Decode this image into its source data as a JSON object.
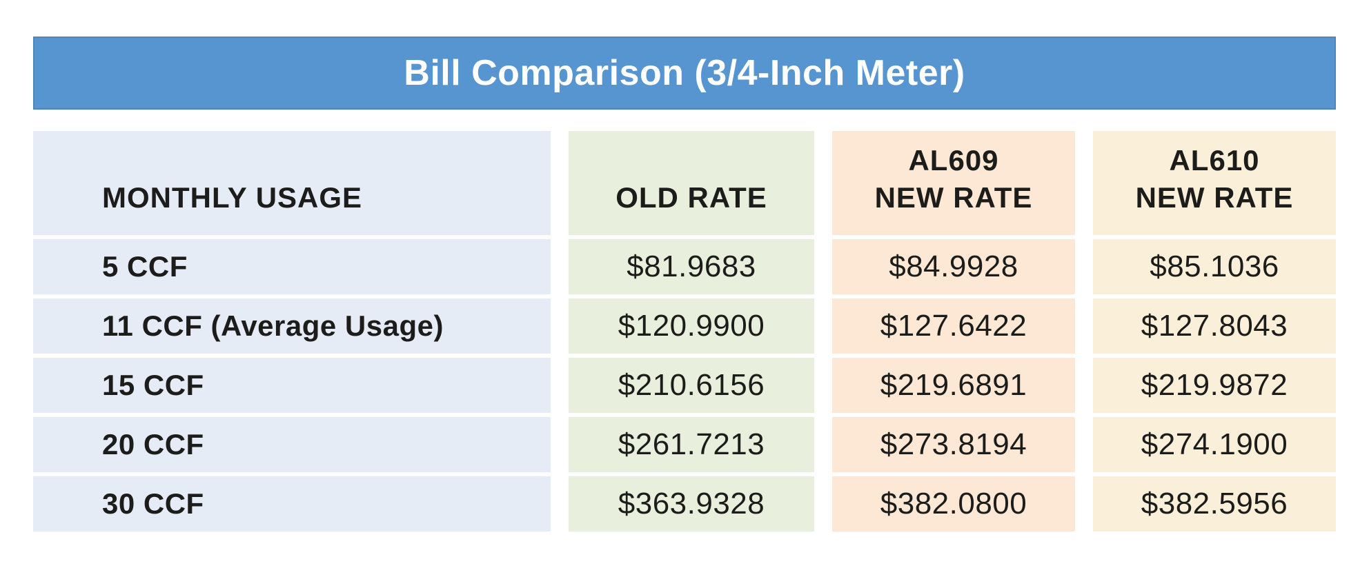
{
  "title": "Bill Comparison (3/4-Inch Meter)",
  "colors": {
    "bar_blue": "#5795d0",
    "bar_blue_border": "#4d86bb",
    "title_text": "#ffffff",
    "col_usage": "#e6ecf6",
    "col_old": "#e8f0dd",
    "col_al609": "#fce8d4",
    "col_al610": "#faf0d9",
    "text": "#1c1c1a"
  },
  "table": {
    "header": {
      "usage": "MONTHLY USAGE",
      "old": "OLD RATE",
      "al609": "AL609\nNEW RATE",
      "al610": "AL610\nNEW RATE"
    },
    "rows": [
      {
        "usage": "5 CCF",
        "old": "$81.9683",
        "al609": "$84.9928",
        "al610": "$85.1036"
      },
      {
        "usage": "11 CCF (Average Usage)",
        "old": "$120.9900",
        "al609": "$127.6422",
        "al610": "$127.8043"
      },
      {
        "usage": "15 CCF",
        "old": "$210.6156",
        "al609": "$219.6891",
        "al610": "$219.9872"
      },
      {
        "usage": "20 CCF",
        "old": "$261.7213",
        "al609": "$273.8194",
        "al610": "$274.1900"
      },
      {
        "usage": "30 CCF",
        "old": "$363.9328",
        "al609": "$382.0800",
        "al610": "$382.5956"
      }
    ]
  },
  "chart_data": {
    "type": "table",
    "title": "Bill Comparison (3/4-Inch Meter)",
    "columns": [
      "MONTHLY USAGE",
      "OLD RATE",
      "AL609 NEW RATE",
      "AL610 NEW RATE"
    ],
    "rows": [
      [
        "5 CCF",
        81.9683,
        84.9928,
        85.1036
      ],
      [
        "11 CCF (Average Usage)",
        120.99,
        127.6422,
        127.8043
      ],
      [
        "15 CCF",
        210.6156,
        219.6891,
        219.9872
      ],
      [
        "20 CCF",
        261.7213,
        273.8194,
        274.19
      ],
      [
        "30 CCF",
        363.9328,
        382.08,
        382.5956
      ]
    ],
    "notes": "Dollar amounts shown with $ prefix and 4 decimal places"
  }
}
